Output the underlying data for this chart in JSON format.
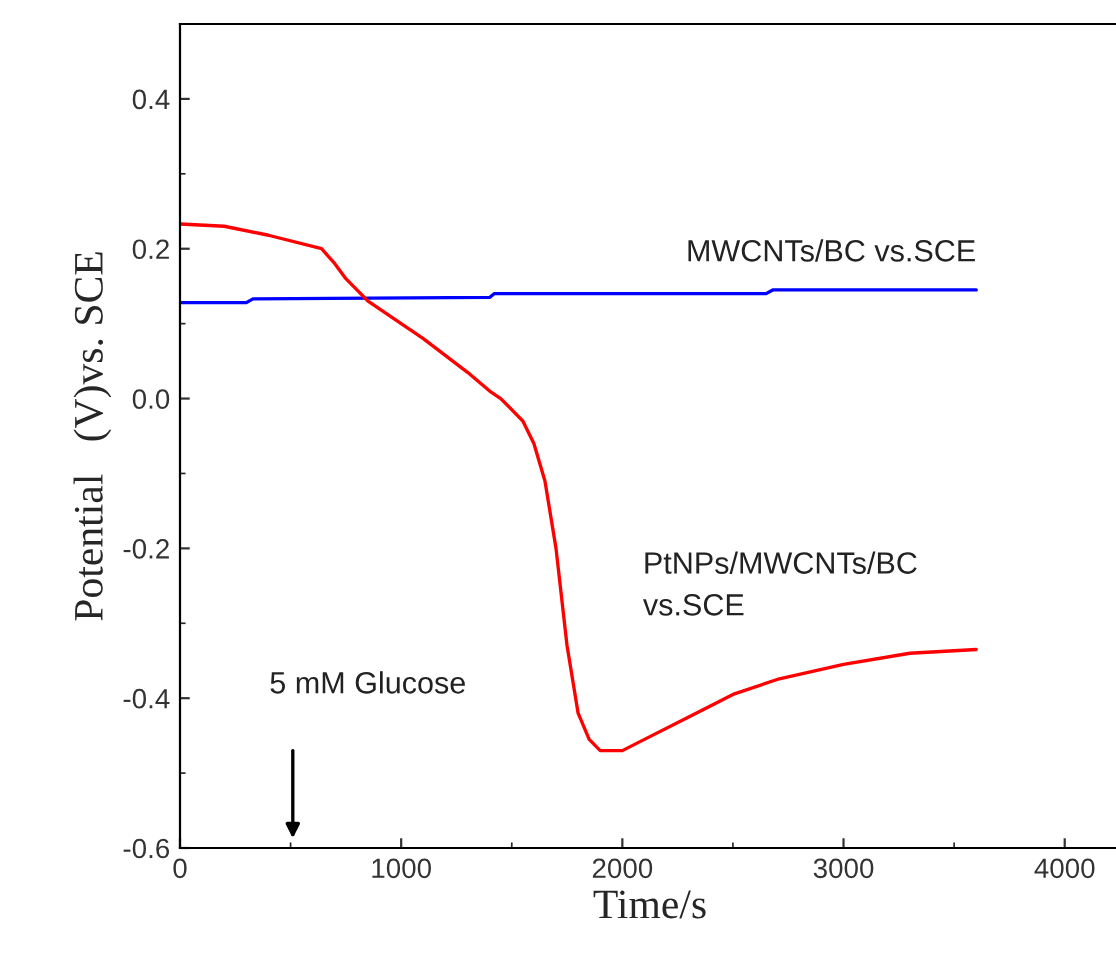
{
  "chart_data": {
    "type": "line",
    "xlabel": "Time/s",
    "ylabel": "Potential   (V)vs. SCE",
    "xlim": [
      0,
      4250
    ],
    "ylim": [
      -0.6,
      0.5
    ],
    "xticks": [
      0,
      1000,
      2000,
      3000,
      4000
    ],
    "yticks": [
      {
        "value": -0.6,
        "label": "-0.6"
      },
      {
        "value": -0.4,
        "label": "-0.4"
      },
      {
        "value": -0.2,
        "label": "-0.2"
      },
      {
        "value": 0.0,
        "label": "0.0"
      },
      {
        "value": 0.2,
        "label": "0.2"
      },
      {
        "value": 0.4,
        "label": "0.4"
      }
    ],
    "grid": false,
    "legend": false,
    "series": [
      {
        "name": "MWCNTs/BC vs.SCE",
        "color": "#0000ff",
        "x": [
          0,
          300,
          330,
          1400,
          1420,
          2650,
          2680,
          3600
        ],
        "values": [
          0.128,
          0.128,
          0.133,
          0.135,
          0.14,
          0.14,
          0.145,
          0.145
        ]
      },
      {
        "name": "PtNPs/MWCNTs/BC\nvs.SCE",
        "color": "#ff0000",
        "x": [
          0,
          200,
          400,
          640,
          700,
          750,
          850,
          1000,
          1100,
          1300,
          1400,
          1450,
          1550,
          1600,
          1650,
          1700,
          1750,
          1800,
          1850,
          1900,
          2000,
          2100,
          2300,
          2500,
          2700,
          3000,
          3300,
          3600
        ],
        "values": [
          0.233,
          0.23,
          0.218,
          0.2,
          0.18,
          0.16,
          0.13,
          0.1,
          0.08,
          0.035,
          0.01,
          0.0,
          -0.03,
          -0.06,
          -0.11,
          -0.2,
          -0.33,
          -0.42,
          -0.455,
          -0.47,
          -0.47,
          -0.455,
          -0.425,
          -0.395,
          -0.375,
          -0.355,
          -0.34,
          -0.335
        ]
      }
    ],
    "annotations": [
      "5 mM Glucose"
    ]
  }
}
